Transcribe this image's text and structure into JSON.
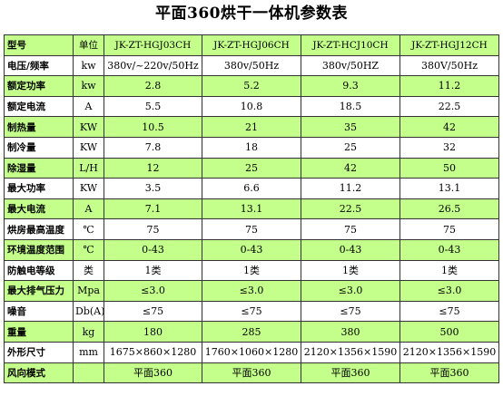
{
  "title": "平面360烘干一体机参数表",
  "header": [
    "型号",
    "单位",
    "JK-ZT-HGJ03CH",
    "JK-ZT-HGJ06CH",
    "JK-ZT-HCJ10CH",
    "JK-ZT-HGJ12CH"
  ],
  "rows": [
    [
      "电压/频率",
      "kw",
      "380v/~220v/50Hz",
      "380v/50Hz",
      "380v/50HZ",
      "380V/50Hz"
    ],
    [
      "额定功率",
      "kw",
      "2.8",
      "5.2",
      "9.3",
      "11.2"
    ],
    [
      "额定电流",
      "A",
      "5.5",
      "10.8",
      "18.5",
      "22.5"
    ],
    [
      "制热量",
      "KW",
      "10.5",
      "21",
      "35",
      "42"
    ],
    [
      "制冷量",
      "KW",
      "7.8",
      "18",
      "25",
      "32"
    ],
    [
      "除湿量",
      "L/H",
      "12",
      "25",
      "42",
      "50"
    ],
    [
      "最大功率",
      "KW",
      "3.5",
      "6.6",
      "11.2",
      "13.1"
    ],
    [
      "最大电流",
      "A",
      "7.1",
      "13.1",
      "22.5",
      "26.5"
    ],
    [
      "烘房最高温度",
      "℃",
      "75",
      "75",
      "75",
      "75"
    ],
    [
      "环境温度范围",
      "℃",
      "0-43",
      "0-43",
      "0-43",
      "0-43"
    ],
    [
      "防触电等级",
      "类",
      "1类",
      "1类",
      "1类",
      "1类"
    ],
    [
      "最大排气压力",
      "Mpa",
      "≤3.0",
      "≤3.0",
      "≤3.0",
      "≤3.0"
    ],
    [
      "噪音",
      "Db(A)",
      "≤75",
      "≤75",
      "≤75",
      "≤75"
    ],
    [
      "重量",
      "kg",
      "180",
      "285",
      "380",
      "500"
    ],
    [
      "外形尺寸",
      "mm",
      "1675×860×1280",
      "1760×1060×1280",
      "2120×1356×1590",
      "2120×1356×1590"
    ],
    [
      "风向模式",
      "",
      "平面360",
      "平面360",
      "平面360",
      "平面360"
    ]
  ],
  "colors": {
    "green": "#c3ff8a",
    "white": "#ffffff",
    "border": "#333333"
  }
}
